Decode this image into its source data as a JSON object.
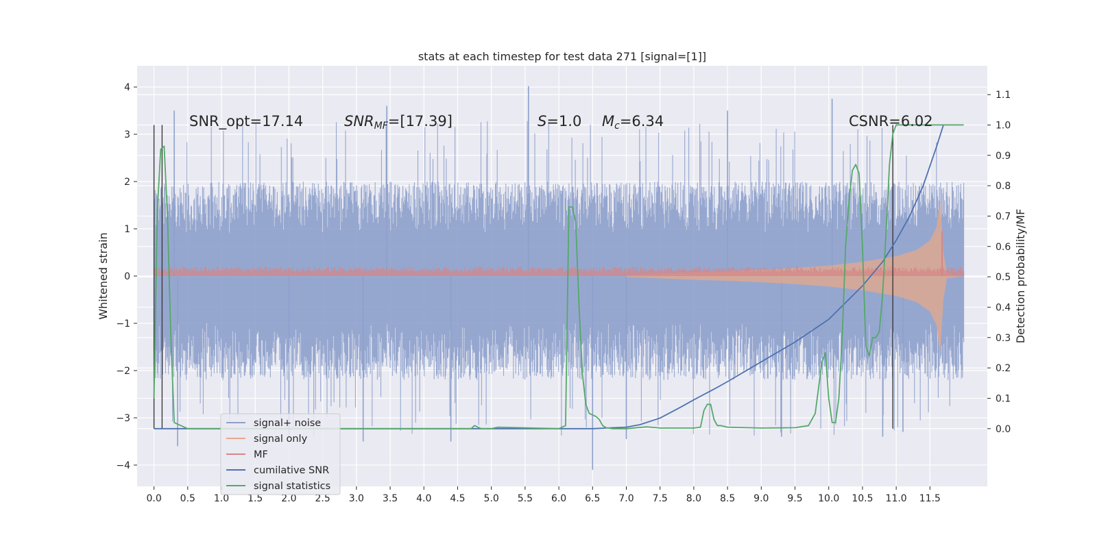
{
  "chart_data": {
    "type": "line",
    "title": "stats at each timestep for test data 271 [signal=[1]]",
    "xlabel": "",
    "ylabel_left": "Whitened strain",
    "ylabel_right": "Detection probability/MF",
    "xlim": [
      -0.25,
      12.35
    ],
    "ylim_left": [
      -4.45,
      4.45
    ],
    "ylim_right": [
      -0.19,
      1.195
    ],
    "x_ticks": [
      0.0,
      0.5,
      1.0,
      1.5,
      2.0,
      2.5,
      3.0,
      3.5,
      4.0,
      4.5,
      5.0,
      5.5,
      6.0,
      6.5,
      7.0,
      7.5,
      8.0,
      8.5,
      9.0,
      9.5,
      10.0,
      10.5,
      11.0,
      11.5
    ],
    "x_tick_labels": [
      "0.0",
      "0.5",
      "1.0",
      "1.5",
      "2.0",
      "2.5",
      "3.0",
      "3.5",
      "4.0",
      "4.5",
      "5.0",
      "5.5",
      "6.0",
      "6.5",
      "7.0",
      "7.5",
      "8.0",
      "8.5",
      "9.0",
      "9.5",
      "10.0",
      "10.5",
      "11.0",
      "11.5"
    ],
    "y_ticks_left": [
      -4,
      -3,
      -2,
      -1,
      0,
      1,
      2,
      3,
      4
    ],
    "y_tick_labels_left": [
      "−4",
      "−3",
      "−2",
      "−1",
      "0",
      "1",
      "2",
      "3",
      "4"
    ],
    "y_ticks_right": [
      0.0,
      0.1,
      0.2,
      0.3,
      0.4,
      0.5,
      0.6,
      0.7,
      0.8,
      0.9,
      1.0,
      1.1
    ],
    "y_tick_labels_right": [
      "0.0",
      "0.1",
      "0.2",
      "0.3",
      "0.4",
      "0.5",
      "0.6",
      "0.7",
      "0.8",
      "0.9",
      "1.0",
      "1.1"
    ],
    "grid": true,
    "legend_placement": "lower-left",
    "annotations": {
      "snr_opt": "SNR_opt=17.14",
      "snr_mf_main": "SNR",
      "snr_mf_sub": "MF",
      "snr_mf_rest": "=[17.39]",
      "s_main": "S",
      "s_rest": "=1.0",
      "mc_main": "M",
      "mc_sub": "c",
      "mc_rest": "=6.34",
      "csnr": "CSNR=6.02"
    },
    "vertical_lines_x": [
      0.0,
      0.12,
      10.95
    ],
    "series": [
      {
        "name": "signal+ noise",
        "color": "#8da0cb",
        "axis": "left",
        "kind": "noise-band",
        "x_range": [
          0.0,
          12.0
        ],
        "typical_upper": 2.0,
        "typical_lower": -2.2,
        "peaks": [
          [
            5.55,
            4.02
          ],
          [
            10.05,
            3.75
          ],
          [
            8.5,
            3.5
          ],
          [
            3.45,
            3.6
          ],
          [
            0.3,
            3.5
          ],
          [
            6.5,
            -4.1
          ],
          [
            0.35,
            -3.6
          ],
          [
            3.1,
            -3.5
          ],
          [
            7.0,
            -3.45
          ],
          [
            9.3,
            -3.4
          ],
          [
            11.1,
            -3.3
          ],
          [
            10.8,
            -3.4
          ],
          [
            4.4,
            -3.5
          ],
          [
            2.0,
            -3.4
          ]
        ]
      },
      {
        "name": "signal only",
        "color": "#e5a88a",
        "axis": "left",
        "kind": "chirp-envelope",
        "x": [
          7.0,
          7.5,
          8.0,
          8.5,
          9.0,
          9.5,
          10.0,
          10.5,
          11.0,
          11.3,
          11.5,
          11.6,
          11.65,
          11.7,
          11.75,
          12.0
        ],
        "amplitude": [
          0.02,
          0.05,
          0.08,
          0.1,
          0.13,
          0.17,
          0.22,
          0.3,
          0.42,
          0.55,
          0.75,
          1.05,
          1.65,
          0.5,
          0.05,
          0.0
        ]
      },
      {
        "name": "MF",
        "color": "#d68586",
        "axis": "left",
        "kind": "band",
        "x_range": [
          0.0,
          12.0
        ],
        "lower": 0.0,
        "upper": 0.2,
        "spike_x": 11.68,
        "spike_y": 0.95
      },
      {
        "name": "cumilative SNR",
        "color": "#4c72b0",
        "axis": "right",
        "x": [
          0.0,
          6.5,
          7.0,
          7.2,
          7.5,
          7.8,
          8.0,
          8.3,
          8.5,
          9.0,
          9.5,
          10.0,
          10.5,
          10.8,
          11.0,
          11.2,
          11.4,
          11.6,
          11.7
        ],
        "values": [
          0.0,
          0.0,
          0.005,
          0.013,
          0.035,
          0.07,
          0.095,
          0.13,
          0.155,
          0.22,
          0.285,
          0.36,
          0.47,
          0.55,
          0.62,
          0.7,
          0.8,
          0.93,
          1.0
        ]
      },
      {
        "name": "signal statistics",
        "color": "#55a868",
        "axis": "right",
        "x": [
          0.0,
          0.05,
          0.1,
          0.15,
          0.2,
          0.25,
          0.3,
          0.5,
          1.0,
          4.7,
          4.75,
          4.8,
          4.85,
          5.0,
          5.1,
          6.0,
          6.1,
          6.15,
          6.2,
          6.25,
          6.3,
          6.35,
          6.4,
          6.45,
          6.5,
          6.55,
          6.6,
          6.65,
          6.7,
          6.8,
          7.0,
          7.3,
          7.5,
          8.0,
          8.1,
          8.15,
          8.2,
          8.25,
          8.3,
          8.35,
          8.4,
          8.5,
          9.0,
          9.5,
          9.7,
          9.8,
          9.9,
          9.95,
          10.0,
          10.05,
          10.1,
          10.15,
          10.2,
          10.25,
          10.3,
          10.35,
          10.4,
          10.45,
          10.5,
          10.55,
          10.6,
          10.65,
          10.7,
          10.75,
          10.8,
          10.85,
          10.9,
          10.95,
          11.0,
          11.05,
          11.1,
          11.15,
          11.2,
          12.0
        ],
        "values": [
          0.1,
          0.72,
          0.92,
          0.93,
          0.7,
          0.3,
          0.02,
          0.0,
          0.0,
          0.0,
          0.01,
          0.005,
          0.0,
          0.0,
          0.005,
          0.0,
          0.01,
          0.73,
          0.73,
          0.68,
          0.4,
          0.18,
          0.08,
          0.05,
          0.045,
          0.04,
          0.03,
          0.01,
          0.003,
          0.0,
          0.0,
          0.006,
          0.002,
          0.002,
          0.005,
          0.06,
          0.08,
          0.08,
          0.03,
          0.01,
          0.01,
          0.005,
          0.002,
          0.003,
          0.01,
          0.05,
          0.22,
          0.25,
          0.1,
          0.02,
          0.02,
          0.1,
          0.3,
          0.6,
          0.75,
          0.85,
          0.87,
          0.84,
          0.6,
          0.27,
          0.24,
          0.3,
          0.3,
          0.32,
          0.45,
          0.65,
          0.87,
          0.97,
          1.0,
          1.0,
          1.0,
          1.0,
          1.0,
          1.0
        ]
      }
    ]
  }
}
